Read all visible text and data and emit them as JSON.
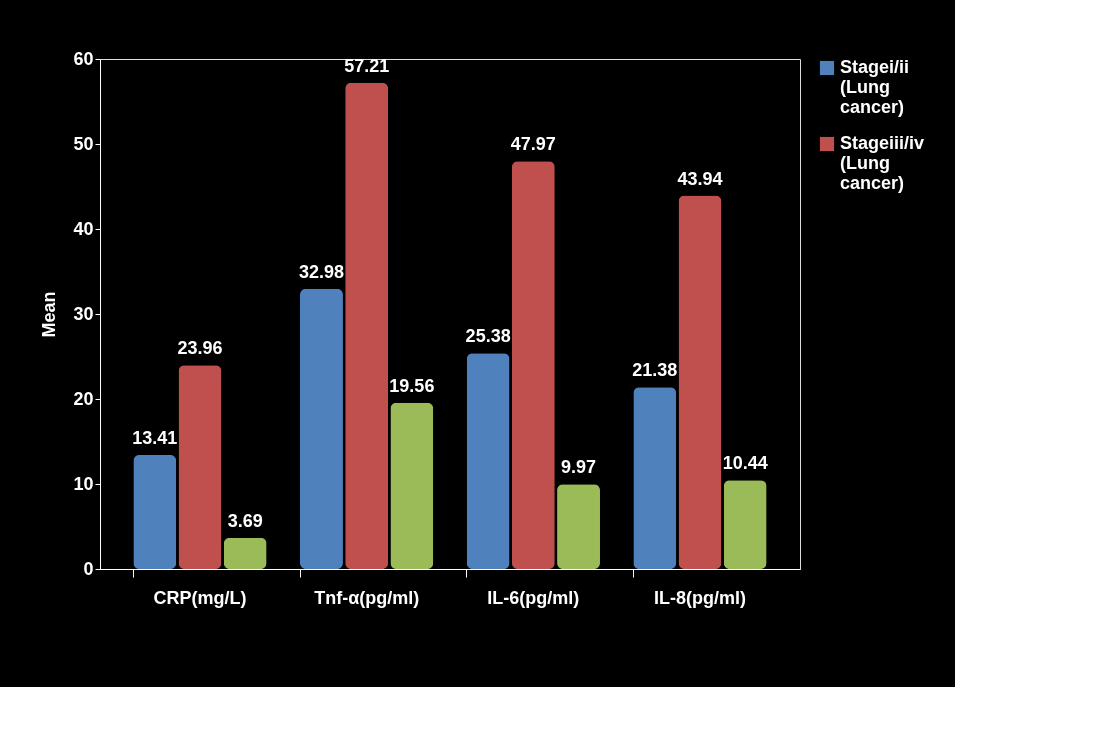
{
  "chart_data": {
    "type": "bar",
    "ylabel": "Mean",
    "categories": [
      "CRP(mg/L)",
      "Tnf-α(pg/ml)",
      "IL-6(pg/ml)",
      "IL-8(pg/ml)"
    ],
    "series": [
      {
        "name": "Stagei/ii (Lung cancer)",
        "color": "#4f81bd",
        "values": [
          13.41,
          32.98,
          25.38,
          21.38
        ]
      },
      {
        "name": "Stageiii/iv (Lung cancer)",
        "color": "#c0504d",
        "values": [
          23.96,
          57.21,
          47.97,
          43.94
        ]
      },
      {
        "color": "#9bbb59",
        "values": [
          3.69,
          19.56,
          9.97,
          10.44
        ]
      }
    ],
    "ylim": [
      0,
      60
    ],
    "yticks": [
      0,
      10,
      20,
      30,
      40,
      50,
      60
    ],
    "grid": false,
    "legend": "right",
    "data_labels": true
  }
}
